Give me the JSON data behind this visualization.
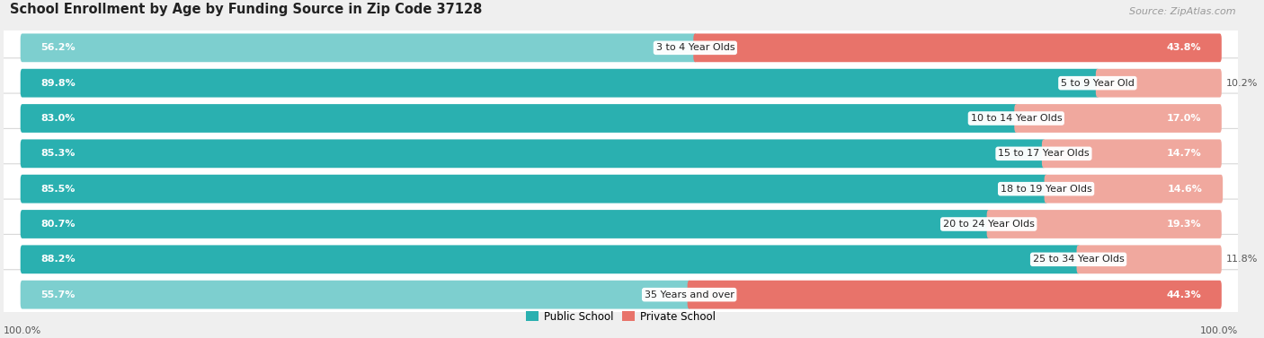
{
  "title": "School Enrollment by Age by Funding Source in Zip Code 37128",
  "source": "Source: ZipAtlas.com",
  "categories": [
    "3 to 4 Year Olds",
    "5 to 9 Year Old",
    "10 to 14 Year Olds",
    "15 to 17 Year Olds",
    "18 to 19 Year Olds",
    "20 to 24 Year Olds",
    "25 to 34 Year Olds",
    "35 Years and over"
  ],
  "public_values": [
    56.2,
    89.8,
    83.0,
    85.3,
    85.5,
    80.7,
    88.2,
    55.7
  ],
  "private_values": [
    43.8,
    10.2,
    17.0,
    14.7,
    14.6,
    19.3,
    11.8,
    44.3
  ],
  "public_colors": [
    "#7dcfcf",
    "#2ab0b0",
    "#2ab0b0",
    "#2ab0b0",
    "#2ab0b0",
    "#2ab0b0",
    "#2ab0b0",
    "#7dcfcf"
  ],
  "private_colors": [
    "#e8736a",
    "#f0a89e",
    "#f0a89e",
    "#f0a89e",
    "#f0a89e",
    "#f0a89e",
    "#f0a89e",
    "#e8736a"
  ],
  "bg_color": "#efefef",
  "row_bg": "#ffffff",
  "row_border": "#d8d8d8",
  "label_color_inside_dark": "#ffffff",
  "label_color_outside": "#555555",
  "legend_public_color": "#2ab0b0",
  "legend_private_color": "#e8736a",
  "axis_label": "100.0%",
  "title_fontsize": 10.5,
  "source_fontsize": 8,
  "bar_label_fontsize": 8,
  "category_fontsize": 8,
  "legend_fontsize": 8.5
}
